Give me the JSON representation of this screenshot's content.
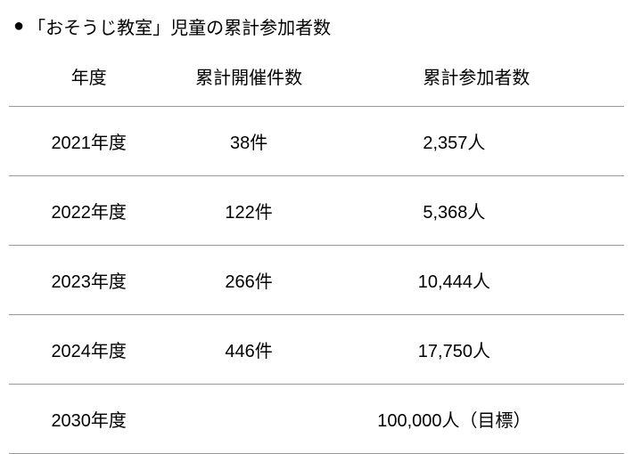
{
  "title": "「おそうじ教室」児童の累計参加者数",
  "bullet": "●",
  "table": {
    "headers": {
      "year": "年度",
      "events": "累計開催件数",
      "participants": "累計参加者数"
    },
    "rows": [
      {
        "year": "2021年度",
        "events": "38件",
        "participants": "2,357人"
      },
      {
        "year": "2022年度",
        "events": "122件",
        "participants": "5,368人"
      },
      {
        "year": "2023年度",
        "events": "266件",
        "participants": "10,444人"
      },
      {
        "year": "2024年度",
        "events": "446件",
        "participants": "17,750人"
      },
      {
        "year": "2030年度",
        "events": "",
        "participants": "100,000人（目標）"
      }
    ]
  },
  "style": {
    "background_color": "#ffffff",
    "text_color": "#000000",
    "border_color": "#999999",
    "title_fontsize": 20,
    "cell_fontsize": 20,
    "header_row_height": 50,
    "body_row_height": 78,
    "col_widths": {
      "year": "26%",
      "events": "26%",
      "participants": "48%"
    }
  }
}
